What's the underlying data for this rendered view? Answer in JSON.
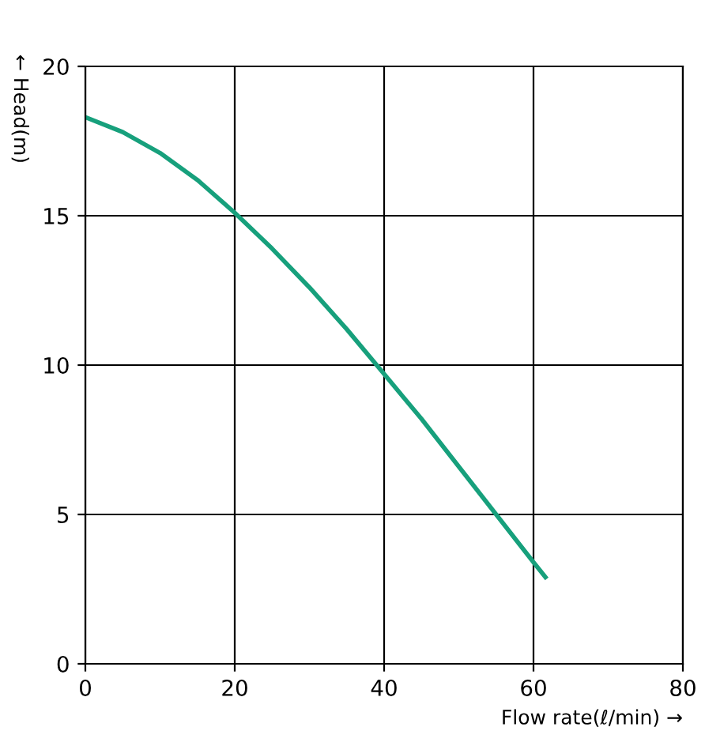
{
  "chart_data": {
    "type": "line",
    "xlabel": "Flow rate(ℓ/min) →",
    "ylabel": "← Head(m)",
    "series": [
      {
        "color": "#17a07c",
        "x": [
          0,
          5,
          10,
          15,
          20,
          25,
          30,
          35,
          40,
          45,
          50,
          55,
          60,
          61.6
        ],
        "values": [
          18.3,
          17.8,
          17.1,
          16.2,
          15.1,
          13.9,
          12.6,
          11.2,
          9.7,
          8.2,
          6.6,
          5.0,
          3.4,
          2.9
        ]
      }
    ],
    "xlim": [
      0,
      80
    ],
    "xticks": [
      0,
      20,
      40,
      60,
      80
    ],
    "ylim": [
      0,
      20
    ],
    "yticks": [
      0,
      5,
      10,
      15,
      20
    ],
    "grid": true,
    "legend": false,
    "marker": "none",
    "line_style": "solid"
  }
}
